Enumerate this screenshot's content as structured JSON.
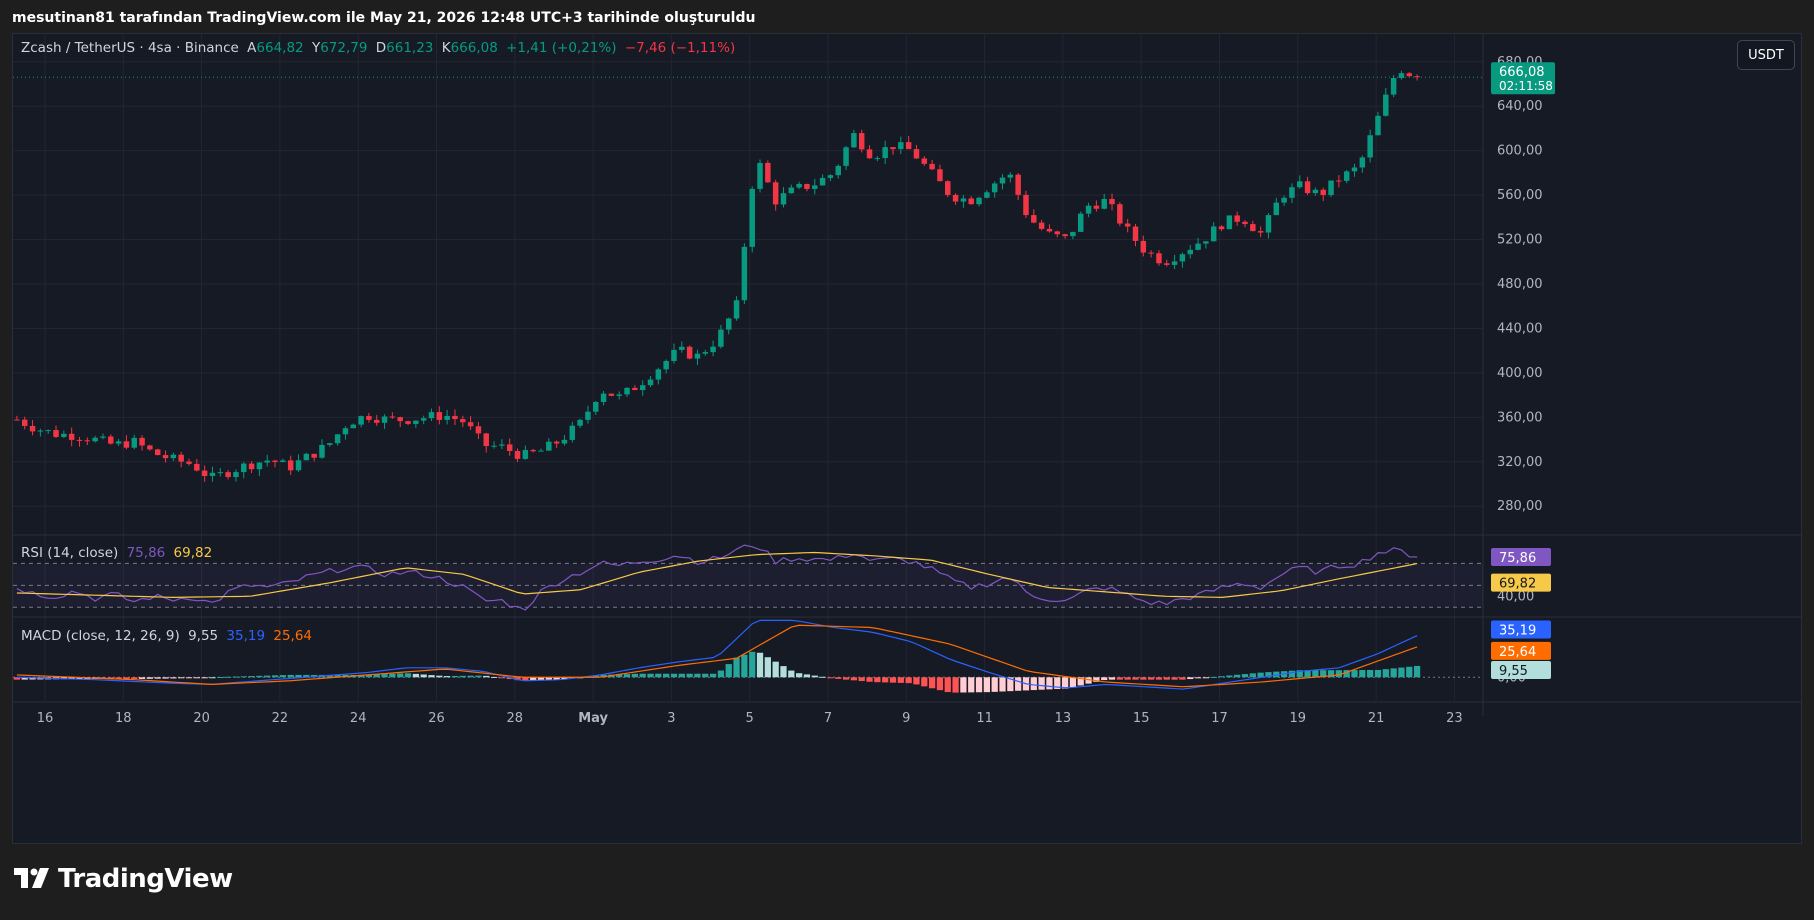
{
  "header": {
    "snapshot_text": "mesutinan81 tarafından TradingView.com ile May 21, 2026 12:48 UTC+3 tarihinde oluşturuldu"
  },
  "brand": {
    "name": "TradingView"
  },
  "currency_button": "USDT",
  "legend": {
    "symbol": "Zcash / TetherUS · 4sa · Binance",
    "open_label": "A",
    "open": "664,82",
    "high_label": "Y",
    "high": "672,79",
    "low_label": "D",
    "low": "661,23",
    "close_label": "K",
    "close": "666,08",
    "change": "+1,41 (+0,21%)",
    "change2": "−7,46 (−1,11%)"
  },
  "price_badge": {
    "price": "666,08",
    "countdown": "02:11:58"
  },
  "rsi_legend": {
    "label": "RSI (14, close)",
    "rsi": "75,86",
    "ma": "69,82"
  },
  "macd_legend": {
    "label": "MACD (close, 12, 26, 9)",
    "hist": "9,55",
    "macd": "35,19",
    "signal": "25,64"
  },
  "colors": {
    "up": "#089981",
    "down": "#f23645",
    "rsi": "#7e57c2",
    "rsi_ma": "#f7c948",
    "macd": "#2962ff",
    "signal": "#ff6d00",
    "bg": "#161a25"
  },
  "chart_data": [
    {
      "type": "candlestick",
      "title": "Zcash / TetherUS · 4sa · Binance",
      "x_ticks": [
        "16",
        "18",
        "20",
        "22",
        "24",
        "26",
        "28",
        "May",
        "3",
        "5",
        "7",
        "9",
        "11",
        "13",
        "15",
        "17",
        "19",
        "21",
        "23"
      ],
      "y_ticks": [
        "280,00",
        "320,00",
        "360,00",
        "400,00",
        "440,00",
        "480,00",
        "520,00",
        "560,00",
        "600,00",
        "640,00",
        "680,00"
      ],
      "ylim": [
        255,
        705
      ],
      "current_price": 666.08,
      "close_path": [
        [
          0,
          358
        ],
        [
          1,
          350
        ],
        [
          2,
          345
        ],
        [
          3,
          344
        ],
        [
          4,
          340
        ],
        [
          5,
          335
        ],
        [
          6,
          338
        ],
        [
          7,
          328
        ],
        [
          8,
          322
        ],
        [
          9,
          318
        ],
        [
          10,
          305
        ],
        [
          11,
          312
        ],
        [
          12,
          318
        ],
        [
          13,
          322
        ],
        [
          14,
          315
        ],
        [
          15,
          325
        ],
        [
          16,
          335
        ],
        [
          17,
          355
        ],
        [
          18,
          362
        ],
        [
          19,
          358
        ],
        [
          20,
          358
        ],
        [
          21,
          360
        ],
        [
          22,
          362
        ],
        [
          23,
          356
        ],
        [
          24,
          335
        ],
        [
          25,
          333
        ],
        [
          26,
          325
        ],
        [
          27,
          330
        ],
        [
          28,
          340
        ],
        [
          29,
          355
        ],
        [
          30,
          385
        ],
        [
          31,
          378
        ],
        [
          32,
          390
        ],
        [
          33,
          405
        ],
        [
          34,
          420
        ],
        [
          35,
          415
        ],
        [
          36,
          430
        ],
        [
          37,
          460
        ],
        [
          38,
          595
        ],
        [
          39,
          555
        ],
        [
          40,
          565
        ],
        [
          41,
          570
        ],
        [
          42,
          580
        ],
        [
          43,
          615
        ],
        [
          44,
          595
        ],
        [
          45,
          605
        ],
        [
          46,
          600
        ],
        [
          47,
          580
        ],
        [
          48,
          560
        ],
        [
          49,
          555
        ],
        [
          50,
          568
        ],
        [
          51,
          580
        ],
        [
          52,
          540
        ],
        [
          53,
          525
        ],
        [
          54,
          520
        ],
        [
          55,
          550
        ],
        [
          56,
          555
        ],
        [
          57,
          530
        ],
        [
          58,
          510
        ],
        [
          59,
          500
        ],
        [
          60,
          510
        ],
        [
          61,
          520
        ],
        [
          62,
          535
        ],
        [
          63,
          540
        ],
        [
          64,
          525
        ],
        [
          65,
          560
        ],
        [
          66,
          568
        ],
        [
          67,
          560
        ],
        [
          68,
          575
        ],
        [
          69,
          585
        ],
        [
          70,
          630
        ],
        [
          71,
          675
        ],
        [
          72,
          666
        ]
      ]
    },
    {
      "type": "line",
      "title": "RSI (14, close)",
      "y_ticks": [
        "40,00"
      ],
      "levels": [
        70,
        50,
        30
      ],
      "ylim": [
        22,
        95
      ],
      "rsi_path": [
        [
          0,
          48
        ],
        [
          1,
          42
        ],
        [
          2,
          40
        ],
        [
          3,
          45
        ],
        [
          4,
          38
        ],
        [
          5,
          42
        ],
        [
          6,
          35
        ],
        [
          7,
          40
        ],
        [
          8,
          37
        ],
        [
          9,
          40
        ],
        [
          10,
          33
        ],
        [
          11,
          45
        ],
        [
          12,
          50
        ],
        [
          13,
          48
        ],
        [
          14,
          52
        ],
        [
          15,
          58
        ],
        [
          16,
          62
        ],
        [
          17,
          67
        ],
        [
          18,
          65
        ],
        [
          19,
          60
        ],
        [
          20,
          62
        ],
        [
          21,
          60
        ],
        [
          22,
          55
        ],
        [
          23,
          48
        ],
        [
          24,
          36
        ],
        [
          25,
          36
        ],
        [
          26,
          27
        ],
        [
          27,
          45
        ],
        [
          28,
          55
        ],
        [
          29,
          62
        ],
        [
          30,
          70
        ],
        [
          31,
          68
        ],
        [
          32,
          72
        ],
        [
          33,
          74
        ],
        [
          34,
          78
        ],
        [
          35,
          72
        ],
        [
          36,
          74
        ],
        [
          37,
          82
        ],
        [
          38,
          88
        ],
        [
          39,
          72
        ],
        [
          40,
          75
        ],
        [
          41,
          74
        ],
        [
          42,
          73
        ],
        [
          43,
          80
        ],
        [
          44,
          72
        ],
        [
          45,
          74
        ],
        [
          46,
          72
        ],
        [
          47,
          65
        ],
        [
          48,
          55
        ],
        [
          49,
          48
        ],
        [
          50,
          52
        ],
        [
          51,
          58
        ],
        [
          52,
          42
        ],
        [
          53,
          38
        ],
        [
          54,
          35
        ],
        [
          55,
          45
        ],
        [
          56,
          48
        ],
        [
          57,
          42
        ],
        [
          58,
          35
        ],
        [
          59,
          33
        ],
        [
          60,
          38
        ],
        [
          61,
          42
        ],
        [
          62,
          48
        ],
        [
          63,
          52
        ],
        [
          64,
          48
        ],
        [
          65,
          60
        ],
        [
          66,
          66
        ],
        [
          67,
          62
        ],
        [
          68,
          68
        ],
        [
          69,
          70
        ],
        [
          70,
          80
        ],
        [
          71,
          82
        ],
        [
          72,
          75.86
        ]
      ],
      "ma_path": [
        [
          0,
          43
        ],
        [
          4,
          41
        ],
        [
          8,
          39
        ],
        [
          12,
          40
        ],
        [
          16,
          52
        ],
        [
          20,
          66
        ],
        [
          23,
          60
        ],
        [
          26,
          42
        ],
        [
          29,
          46
        ],
        [
          32,
          62
        ],
        [
          35,
          72
        ],
        [
          38,
          78
        ],
        [
          41,
          80
        ],
        [
          44,
          77
        ],
        [
          47,
          73
        ],
        [
          50,
          60
        ],
        [
          53,
          48
        ],
        [
          56,
          44
        ],
        [
          59,
          40
        ],
        [
          62,
          39
        ],
        [
          65,
          45
        ],
        [
          68,
          56
        ],
        [
          72,
          69.82
        ]
      ]
    },
    {
      "type": "bar+line",
      "title": "MACD (close, 12, 26, 9)",
      "y_ticks": [
        "0,00"
      ],
      "ylim": [
        -20,
        50
      ],
      "macd_path": [
        [
          0,
          0
        ],
        [
          4,
          -2
        ],
        [
          8,
          -5
        ],
        [
          10,
          -6
        ],
        [
          14,
          -1
        ],
        [
          18,
          4
        ],
        [
          20,
          8
        ],
        [
          22,
          8
        ],
        [
          24,
          5
        ],
        [
          26,
          -3
        ],
        [
          28,
          -2
        ],
        [
          30,
          2
        ],
        [
          32,
          8
        ],
        [
          34,
          13
        ],
        [
          36,
          17
        ],
        [
          38,
          48
        ],
        [
          40,
          48
        ],
        [
          42,
          42
        ],
        [
          44,
          38
        ],
        [
          46,
          30
        ],
        [
          48,
          15
        ],
        [
          50,
          4
        ],
        [
          52,
          -6
        ],
        [
          54,
          -9
        ],
        [
          56,
          -6
        ],
        [
          58,
          -8
        ],
        [
          60,
          -10
        ],
        [
          62,
          -5
        ],
        [
          64,
          0
        ],
        [
          66,
          5
        ],
        [
          68,
          8
        ],
        [
          70,
          20
        ],
        [
          72,
          35.19
        ]
      ],
      "signal_path": [
        [
          0,
          2
        ],
        [
          6,
          -2
        ],
        [
          10,
          -6
        ],
        [
          14,
          -3
        ],
        [
          18,
          2
        ],
        [
          22,
          7
        ],
        [
          26,
          0
        ],
        [
          30,
          0
        ],
        [
          34,
          10
        ],
        [
          37,
          16
        ],
        [
          40,
          44
        ],
        [
          44,
          42
        ],
        [
          48,
          28
        ],
        [
          52,
          5
        ],
        [
          56,
          -4
        ],
        [
          60,
          -8
        ],
        [
          64,
          -4
        ],
        [
          68,
          2
        ],
        [
          72,
          25.64
        ]
      ],
      "histogram_latest": 9.55
    }
  ]
}
